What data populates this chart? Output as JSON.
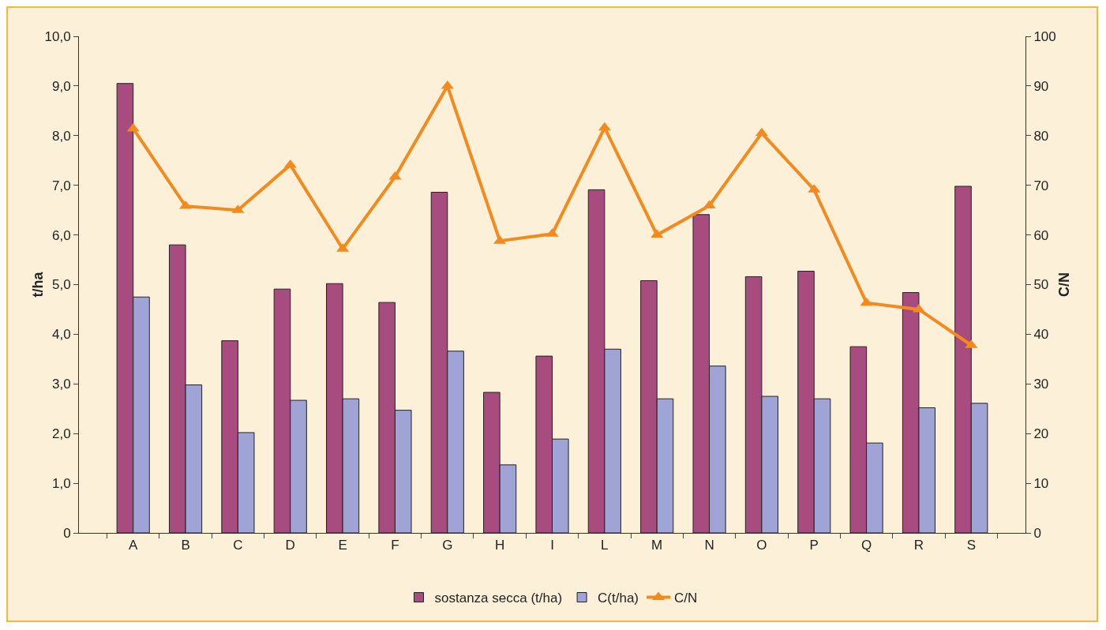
{
  "chart_data": {
    "type": "bar",
    "ylabel": "t/ha",
    "y2label": "C/N",
    "categories": [
      "A",
      "B",
      "C",
      "D",
      "E",
      "F",
      "G",
      "H",
      "I",
      "L",
      "M",
      "N",
      "O",
      "P",
      "Q",
      "R",
      "S"
    ],
    "series": [
      {
        "name": "sostanza secca (t/ha)",
        "color": "#a84b7e",
        "values": [
          9.05,
          5.8,
          3.87,
          4.91,
          5.02,
          4.64,
          6.86,
          2.83,
          3.56,
          6.91,
          5.08,
          6.41,
          5.16,
          5.27,
          3.75,
          4.84,
          6.98
        ]
      },
      {
        "name": "C(t/ha)",
        "color": "#9fa3d6",
        "values": [
          4.75,
          2.98,
          2.02,
          2.67,
          2.7,
          2.47,
          3.66,
          1.37,
          1.89,
          3.7,
          2.7,
          3.36,
          2.75,
          2.7,
          1.81,
          2.52,
          2.61
        ]
      },
      {
        "name": "C/N",
        "type": "line",
        "axis": "y2",
        "color": "#f28a1d",
        "marker": "triangle",
        "line_style": "solid",
        "values": [
          81.4,
          65.8,
          65,
          74.1,
          57.2,
          71.7,
          90,
          58.8,
          60.2,
          81.6,
          60,
          65.9,
          80.5,
          69.1,
          46.3,
          45,
          37.8
        ]
      }
    ],
    "ylim": [
      0,
      10
    ],
    "yticks": [
      {
        "value": 0,
        "label": "0"
      },
      {
        "value": 1,
        "label": "1,0"
      },
      {
        "value": 2,
        "label": "2,0"
      },
      {
        "value": 3,
        "label": "3,0"
      },
      {
        "value": 4,
        "label": "4,0"
      },
      {
        "value": 5,
        "label": "5,0"
      },
      {
        "value": 6,
        "label": "6,0"
      },
      {
        "value": 7,
        "label": "7,0"
      },
      {
        "value": 8,
        "label": "8,0"
      },
      {
        "value": 9,
        "label": "9,0"
      },
      {
        "value": 10,
        "label": "10,0"
      }
    ],
    "y2lim": [
      0,
      100
    ],
    "y2ticks": [
      0,
      10,
      20,
      30,
      40,
      50,
      60,
      70,
      80,
      90,
      100
    ],
    "grid": false,
    "legend": "bottom"
  }
}
